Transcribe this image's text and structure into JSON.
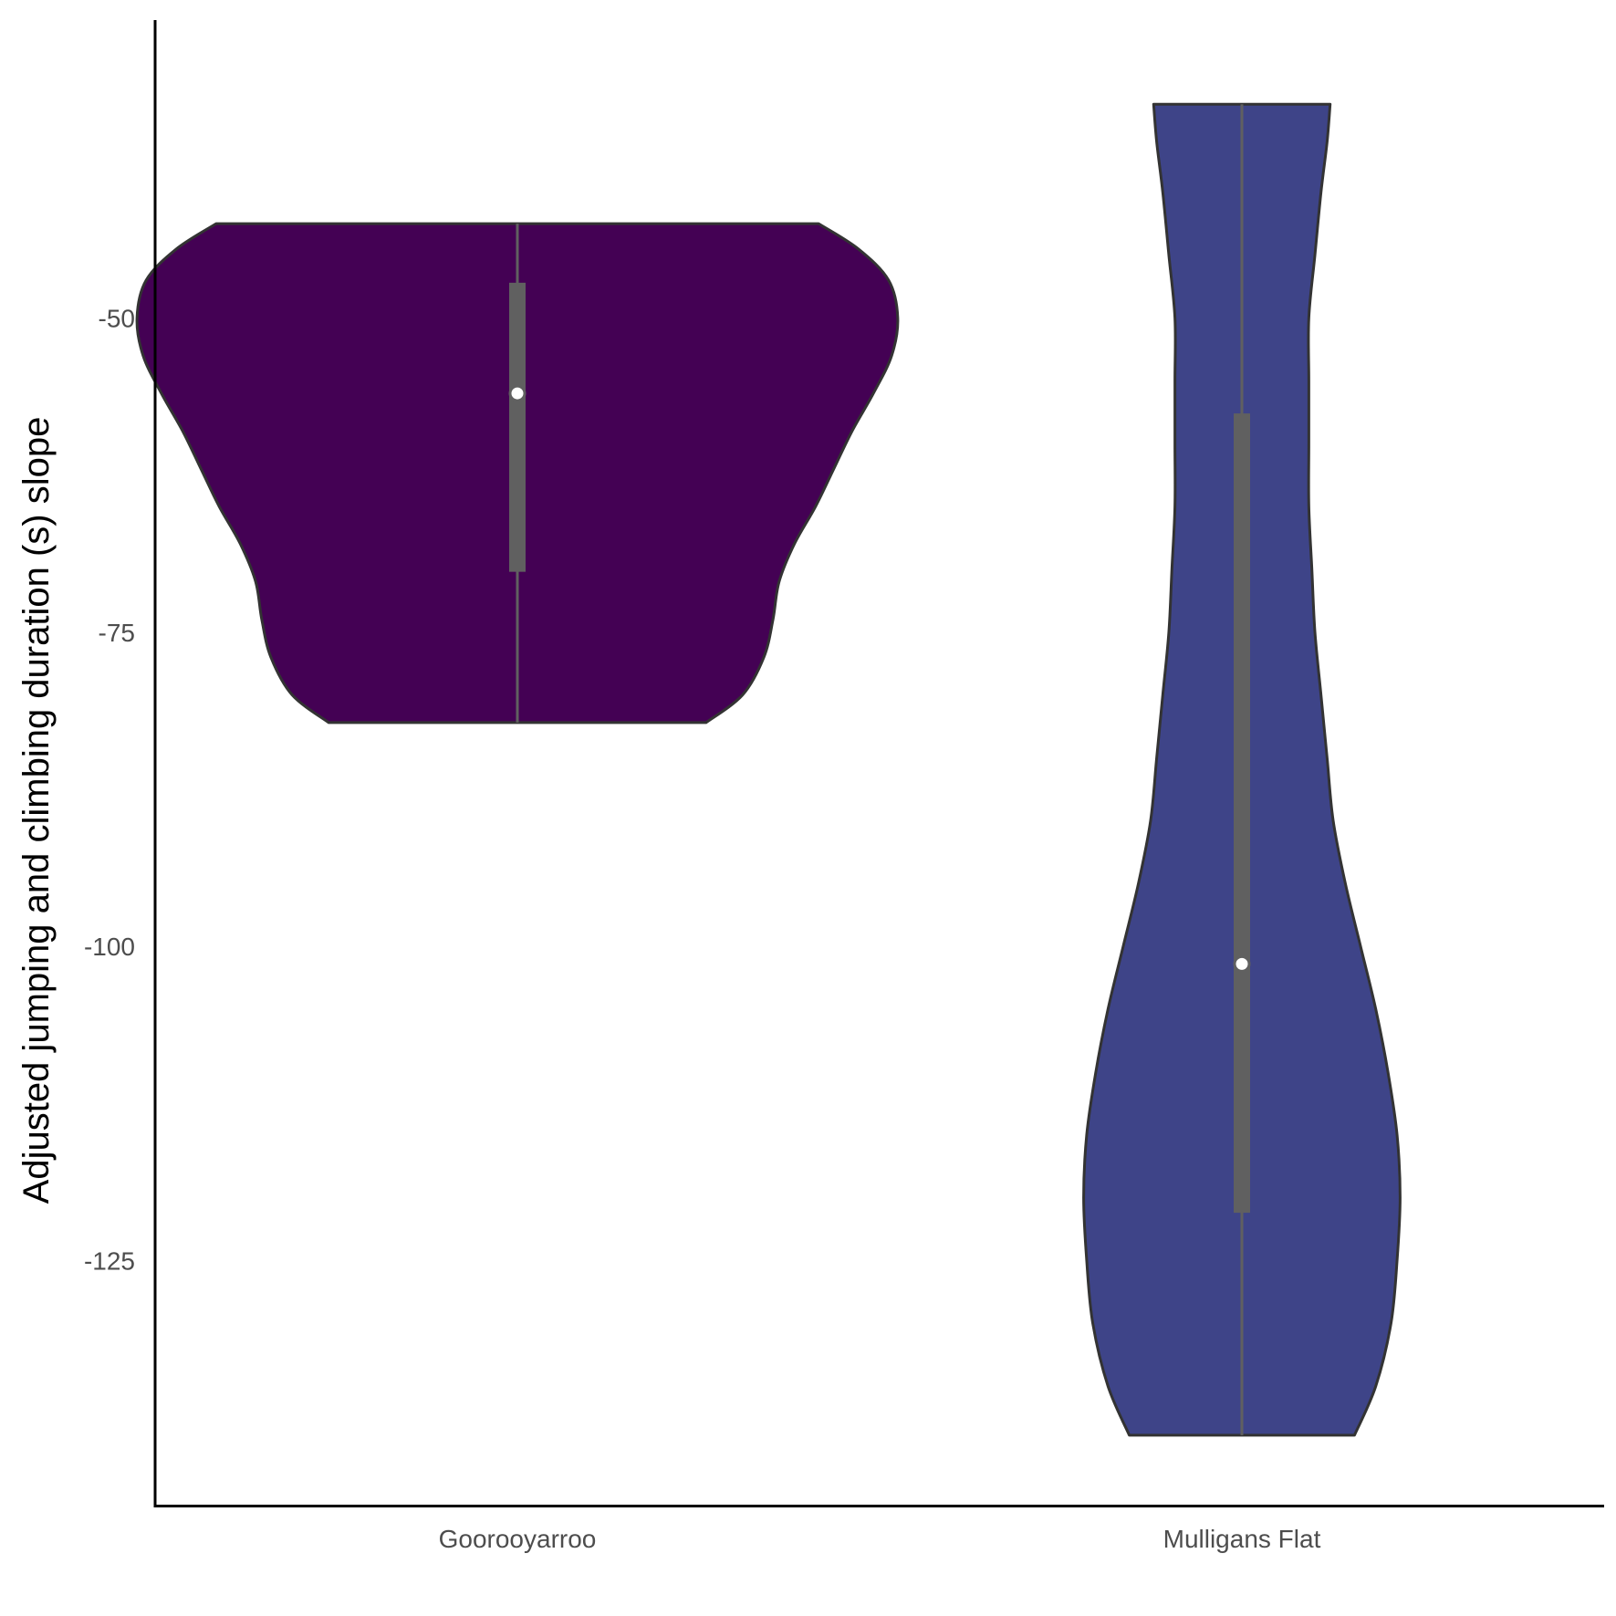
{
  "chart_data": {
    "type": "violin",
    "title": "",
    "xlabel": "",
    "ylabel": "Adjusted jumping and climbing duration (s) slope",
    "ylim": [
      -144.5,
      -26.3
    ],
    "yticks": [
      -50,
      -75,
      -100,
      -125
    ],
    "grid": false,
    "legend": "none",
    "categories": [
      "Goorooyarroo",
      "Mulligans Flat"
    ],
    "series": [
      {
        "category": "Goorooyarroo",
        "color": "#440154",
        "y_min": -82.2,
        "y_max": -42.5,
        "q1": -70.2,
        "median": -56.0,
        "q3": -47.2,
        "density_profile": [
          [
            -82.2,
            0.62
          ],
          [
            -80.0,
            0.74
          ],
          [
            -77.0,
            0.81
          ],
          [
            -74.0,
            0.84
          ],
          [
            -71.0,
            0.86
          ],
          [
            -68.0,
            0.91
          ],
          [
            -65.0,
            0.98
          ],
          [
            -62.0,
            1.04
          ],
          [
            -59.0,
            1.1
          ],
          [
            -56.0,
            1.17
          ],
          [
            -53.0,
            1.23
          ],
          [
            -50.0,
            1.25
          ],
          [
            -47.0,
            1.22
          ],
          [
            -44.5,
            1.12
          ],
          [
            -42.5,
            0.99
          ]
        ]
      },
      {
        "category": "Mulligans Flat",
        "color": "#3e4488",
        "y_min": -138.9,
        "y_max": -33.0,
        "q1": -121.2,
        "median": -101.4,
        "q3": -57.6,
        "density_profile": [
          [
            -138.9,
            0.37
          ],
          [
            -135.0,
            0.44
          ],
          [
            -130.0,
            0.49
          ],
          [
            -125.0,
            0.51
          ],
          [
            -120.0,
            0.52
          ],
          [
            -115.0,
            0.51
          ],
          [
            -110.0,
            0.48
          ],
          [
            -105.0,
            0.44
          ],
          [
            -100.0,
            0.39
          ],
          [
            -95.0,
            0.34
          ],
          [
            -90.0,
            0.3
          ],
          [
            -85.0,
            0.28
          ],
          [
            -80.0,
            0.26
          ],
          [
            -75.0,
            0.24
          ],
          [
            -70.0,
            0.23
          ],
          [
            -65.0,
            0.22
          ],
          [
            -60.0,
            0.22
          ],
          [
            -55.0,
            0.22
          ],
          [
            -50.0,
            0.22
          ],
          [
            -45.0,
            0.24
          ],
          [
            -40.0,
            0.26
          ],
          [
            -36.0,
            0.28
          ],
          [
            -33.0,
            0.29
          ]
        ]
      }
    ]
  }
}
